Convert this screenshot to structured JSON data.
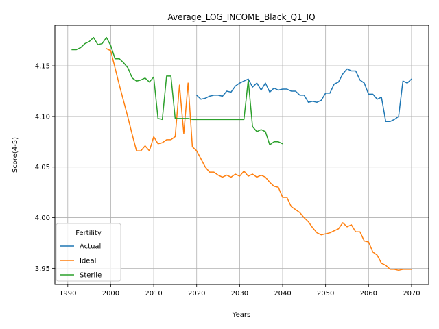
{
  "chart_data": {
    "type": "line",
    "title": "Average_LOG_INCOME_Black_Q1_IQ",
    "xlabel": "Years",
    "ylabel": "Score(4-5)",
    "xlim": [
      1987,
      2074
    ],
    "ylim": [
      3.934,
      4.19
    ],
    "xticks": [
      1990,
      2000,
      2010,
      2020,
      2030,
      2040,
      2050,
      2060,
      2070
    ],
    "yticks": [
      3.95,
      4.0,
      4.05,
      4.1,
      4.15
    ],
    "ytick_labels": [
      "3.95",
      "4.00",
      "4.05",
      "4.10",
      "4.15"
    ],
    "grid": true,
    "legend": {
      "title": "Fertility",
      "location": "lower left"
    },
    "series": [
      {
        "name": "Actual",
        "color": "#1f77b4",
        "x": [
          2020,
          2021,
          2022,
          2023,
          2024,
          2025,
          2026,
          2027,
          2028,
          2029,
          2030,
          2031,
          2032,
          2033,
          2034,
          2035,
          2036,
          2037,
          2038,
          2039,
          2040,
          2041,
          2042,
          2043,
          2044,
          2045,
          2046,
          2047,
          2048,
          2049,
          2050,
          2051,
          2052,
          2053,
          2054,
          2055,
          2056,
          2057,
          2058,
          2059,
          2060,
          2061,
          2062,
          2063,
          2064,
          2065,
          2066,
          2067,
          2068,
          2069,
          2070
        ],
        "y": [
          4.121,
          4.117,
          4.118,
          4.12,
          4.121,
          4.121,
          4.12,
          4.125,
          4.124,
          4.13,
          4.133,
          4.135,
          4.137,
          4.129,
          4.133,
          4.126,
          4.133,
          4.124,
          4.128,
          4.126,
          4.127,
          4.127,
          4.125,
          4.125,
          4.121,
          4.121,
          4.114,
          4.115,
          4.114,
          4.116,
          4.123,
          4.123,
          4.132,
          4.134,
          4.142,
          4.147,
          4.145,
          4.145,
          4.136,
          4.133,
          4.122,
          4.122,
          4.117,
          4.119,
          4.095,
          4.095,
          4.097,
          4.1,
          4.135,
          4.133,
          4.137
        ]
      },
      {
        "name": "Ideal",
        "color": "#ff7f0e",
        "x": [
          1999,
          2000,
          2001,
          2002,
          2003,
          2004,
          2005,
          2006,
          2007,
          2008,
          2009,
          2010,
          2011,
          2012,
          2013,
          2014,
          2015,
          2016,
          2017,
          2018,
          2019,
          2020,
          2021,
          2022,
          2023,
          2024,
          2025,
          2026,
          2027,
          2028,
          2029,
          2030,
          2031,
          2032,
          2033,
          2034,
          2035,
          2036,
          2037,
          2038,
          2039,
          2040,
          2041,
          2042,
          2043,
          2044,
          2045,
          2046,
          2047,
          2048,
          2049,
          2050,
          2051,
          2052,
          2053,
          2054,
          2055,
          2056,
          2057,
          2058,
          2059,
          2060,
          2061,
          2062,
          2063,
          2064,
          2065,
          2066,
          2067,
          2068,
          2069,
          2070
        ],
        "y": [
          4.167,
          4.165,
          4.148,
          4.131,
          4.115,
          4.099,
          4.082,
          4.066,
          4.066,
          4.071,
          4.066,
          4.08,
          4.073,
          4.074,
          4.077,
          4.077,
          4.08,
          4.131,
          4.083,
          4.133,
          4.07,
          4.066,
          4.058,
          4.05,
          4.045,
          4.045,
          4.042,
          4.04,
          4.042,
          4.04,
          4.043,
          4.041,
          4.046,
          4.041,
          4.043,
          4.04,
          4.042,
          4.04,
          4.035,
          4.031,
          4.03,
          4.02,
          4.02,
          4.011,
          4.008,
          4.005,
          4.0,
          3.996,
          3.99,
          3.985,
          3.983,
          3.984,
          3.985,
          3.987,
          3.989,
          3.995,
          3.991,
          3.993,
          3.986,
          3.986,
          3.977,
          3.976,
          3.966,
          3.963,
          3.955,
          3.953,
          3.949,
          3.949,
          3.948,
          3.949,
          3.949,
          3.949
        ]
      },
      {
        "name": "Sterile",
        "color": "#2ca02c",
        "x": [
          1991,
          1992,
          1993,
          1994,
          1995,
          1996,
          1997,
          1998,
          1999,
          2000,
          2001,
          2002,
          2003,
          2004,
          2005,
          2006,
          2007,
          2008,
          2009,
          2010,
          2011,
          2012,
          2013,
          2014,
          2015,
          2016,
          2017,
          2018,
          2019,
          2020,
          2021,
          2022,
          2023,
          2024,
          2025,
          2026,
          2027,
          2028,
          2029,
          2030,
          2031,
          2032,
          2033,
          2034,
          2035,
          2036,
          2037,
          2038,
          2039,
          2040
        ],
        "y": [
          4.166,
          4.166,
          4.168,
          4.172,
          4.174,
          4.178,
          4.171,
          4.172,
          4.178,
          4.17,
          4.157,
          4.157,
          4.153,
          4.148,
          4.138,
          4.135,
          4.136,
          4.138,
          4.134,
          4.139,
          4.098,
          4.097,
          4.14,
          4.14,
          4.098,
          4.098,
          4.098,
          4.098,
          4.097,
          4.097,
          4.097,
          4.097,
          4.097,
          4.097,
          4.097,
          4.097,
          4.097,
          4.097,
          4.097,
          4.097,
          4.097,
          4.136,
          4.09,
          4.085,
          4.087,
          4.085,
          4.072,
          4.075,
          4.075,
          4.073
        ]
      }
    ]
  }
}
